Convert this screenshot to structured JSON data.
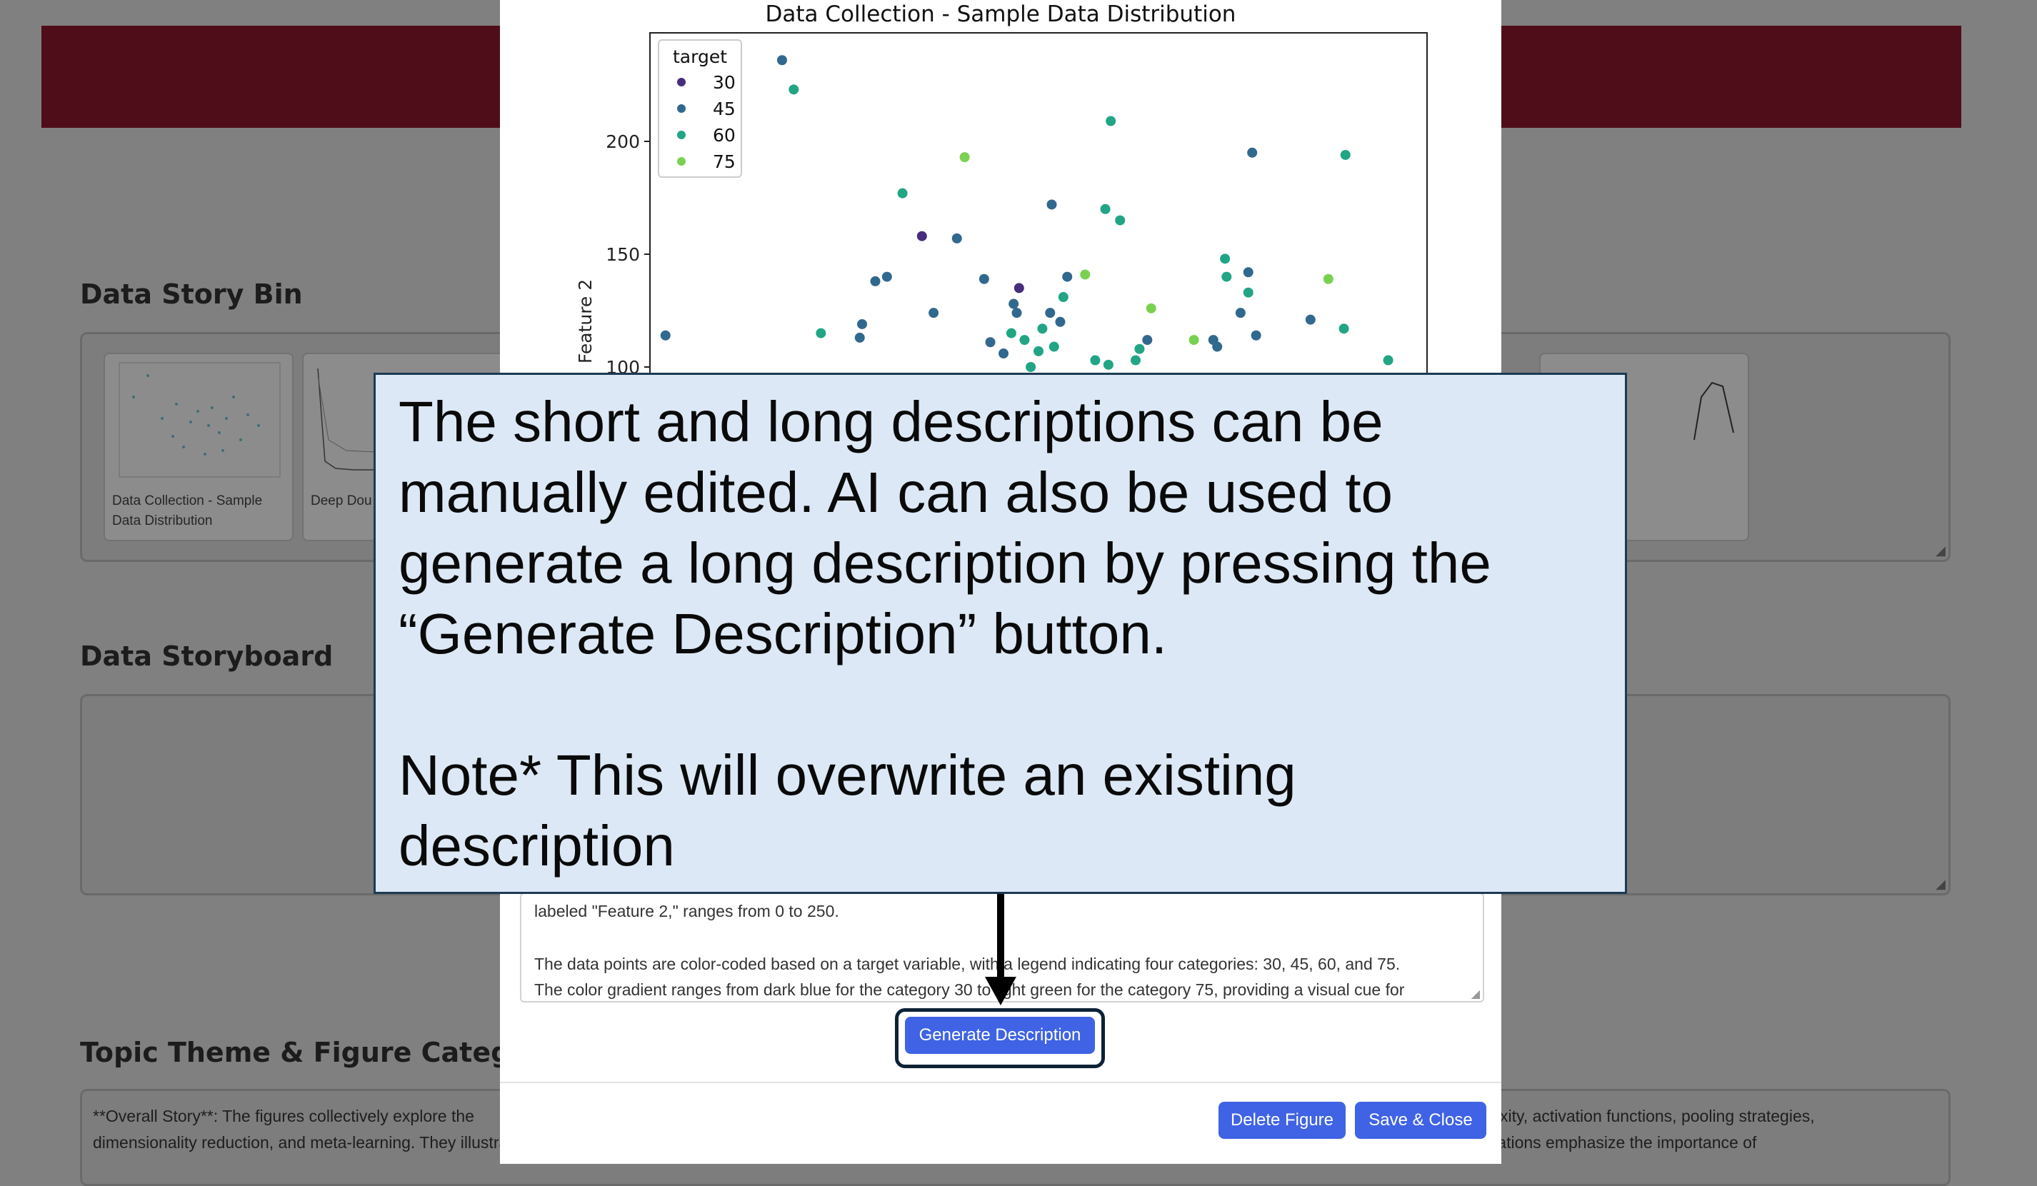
{
  "background": {
    "bin_title": "Data Story Bin",
    "storyboard_title": "Data Storyboard",
    "topic_title": "Topic Theme & Figure Categori",
    "thumb1_caption_line1": "Data Collection - Sample",
    "thumb1_caption_line2": "Data Distribution",
    "thumb2_caption": "Deep Dou",
    "story_line1": "**Overall Story**: The figures collectively explore the",
    "story_line1_right": "xity, activation functions, pooling strategies,",
    "story_line2": "dimensionality reduction, and meta-learning. They illustrate how different configurations, techniques, and transformations impact model accuracy, robustness, and learning efficiency. The visualizations emphasize the importance of"
  },
  "modal": {
    "description_lines": [
      "labeled \"Feature 2,\" ranges from 0 to 250.",
      "",
      "The data points are color-coded based on a target variable, with a legend indicating four categories: 30, 45, 60, and 75.",
      "The color gradient ranges from dark blue for the category 30 to light green for the category 75, providing a visual cue for"
    ],
    "generate_button": "Generate Description",
    "delete_button": "Delete Figure",
    "save_button": "Save & Close"
  },
  "callout": {
    "line1": "The short and long descriptions can be",
    "line2": "manually edited. AI can also be used to",
    "line3": "generate a long description by pressing the",
    "line4": "“Generate Description” button.",
    "line5": "Note* This will overwrite an existing",
    "line6": "description"
  },
  "chart_data": {
    "type": "scatter",
    "title": "Data Collection - Sample Data Distribution",
    "ylabel": "Feature 2",
    "xlabel": "",
    "ylim_visible": [
      99,
      250
    ],
    "yticks": [
      100,
      150,
      200
    ],
    "xlim": [
      0,
      100
    ],
    "legend": {
      "title": "target",
      "placement": "top-left",
      "entries": [
        "30",
        "45",
        "60",
        "75"
      ]
    },
    "colors": {
      "30": "#472d7b",
      "45": "#31688e",
      "60": "#21a585",
      "75": "#7ad151"
    },
    "points": [
      {
        "x": 2,
        "y": 114,
        "t": 45
      },
      {
        "x": 17,
        "y": 236,
        "t": 45
      },
      {
        "x": 18.5,
        "y": 223,
        "t": 60
      },
      {
        "x": 22,
        "y": 115,
        "t": 60
      },
      {
        "x": 27,
        "y": 113,
        "t": 45
      },
      {
        "x": 27.3,
        "y": 119,
        "t": 45
      },
      {
        "x": 29,
        "y": 138,
        "t": 45
      },
      {
        "x": 30.5,
        "y": 140,
        "t": 45
      },
      {
        "x": 32.5,
        "y": 177,
        "t": 60
      },
      {
        "x": 35,
        "y": 158,
        "t": 30
      },
      {
        "x": 36.5,
        "y": 124,
        "t": 45
      },
      {
        "x": 39.5,
        "y": 157,
        "t": 45
      },
      {
        "x": 40.5,
        "y": 193,
        "t": 75
      },
      {
        "x": 43,
        "y": 139,
        "t": 45
      },
      {
        "x": 43.8,
        "y": 111,
        "t": 45
      },
      {
        "x": 45.5,
        "y": 106,
        "t": 45
      },
      {
        "x": 46.5,
        "y": 115,
        "t": 60
      },
      {
        "x": 46.8,
        "y": 128,
        "t": 45
      },
      {
        "x": 47.2,
        "y": 124,
        "t": 45
      },
      {
        "x": 47.5,
        "y": 135,
        "t": 30
      },
      {
        "x": 48.2,
        "y": 112,
        "t": 60
      },
      {
        "x": 49,
        "y": 100,
        "t": 60
      },
      {
        "x": 50,
        "y": 107,
        "t": 60
      },
      {
        "x": 50.5,
        "y": 117,
        "t": 60
      },
      {
        "x": 51.5,
        "y": 124,
        "t": 45
      },
      {
        "x": 51.7,
        "y": 172,
        "t": 45
      },
      {
        "x": 52,
        "y": 109,
        "t": 60
      },
      {
        "x": 52.8,
        "y": 120,
        "t": 45
      },
      {
        "x": 53.2,
        "y": 131,
        "t": 60
      },
      {
        "x": 53.7,
        "y": 140,
        "t": 45
      },
      {
        "x": 56,
        "y": 141,
        "t": 75
      },
      {
        "x": 57.3,
        "y": 103,
        "t": 60
      },
      {
        "x": 58.6,
        "y": 170,
        "t": 60
      },
      {
        "x": 59,
        "y": 101,
        "t": 60
      },
      {
        "x": 59.3,
        "y": 209,
        "t": 60
      },
      {
        "x": 60.5,
        "y": 165,
        "t": 60
      },
      {
        "x": 62.5,
        "y": 103,
        "t": 60
      },
      {
        "x": 63,
        "y": 108,
        "t": 60
      },
      {
        "x": 64,
        "y": 112,
        "t": 45
      },
      {
        "x": 64.5,
        "y": 126,
        "t": 75
      },
      {
        "x": 70,
        "y": 112,
        "t": 75
      },
      {
        "x": 72.5,
        "y": 112,
        "t": 45
      },
      {
        "x": 73,
        "y": 109,
        "t": 45
      },
      {
        "x": 74,
        "y": 148,
        "t": 60
      },
      {
        "x": 74.2,
        "y": 140,
        "t": 60
      },
      {
        "x": 76,
        "y": 124,
        "t": 45
      },
      {
        "x": 77,
        "y": 133,
        "t": 60
      },
      {
        "x": 77,
        "y": 142,
        "t": 45
      },
      {
        "x": 77.5,
        "y": 195,
        "t": 45
      },
      {
        "x": 78,
        "y": 114,
        "t": 45
      },
      {
        "x": 85,
        "y": 121,
        "t": 45
      },
      {
        "x": 87.3,
        "y": 139,
        "t": 75
      },
      {
        "x": 89.3,
        "y": 117,
        "t": 60
      },
      {
        "x": 89.5,
        "y": 194,
        "t": 60
      },
      {
        "x": 95,
        "y": 103,
        "t": 60
      }
    ]
  }
}
